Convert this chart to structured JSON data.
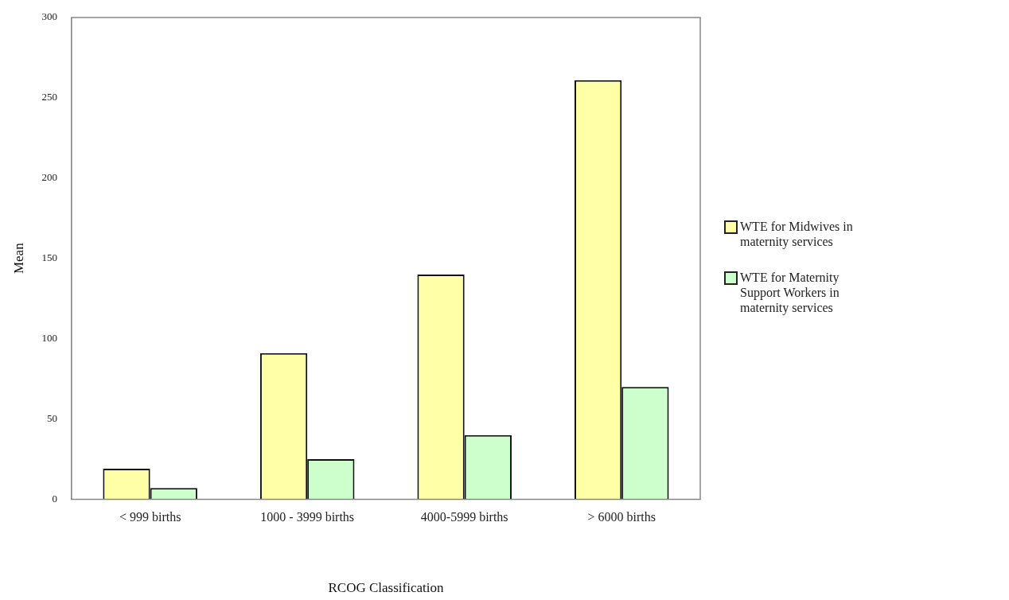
{
  "chart_data": {
    "type": "bar",
    "xlabel": "RCOG Classification",
    "ylabel": "Mean",
    "categories": [
      "< 999 births",
      "1000 - 3999 births",
      "4000-5999 births",
      "> 6000 births"
    ],
    "series": [
      {
        "name": "WTE for Midwives in maternity services",
        "color": "#ffffa8",
        "values": [
          19,
          91,
          140,
          261
        ]
      },
      {
        "name": "WTE for Maternity Support Workers in maternity services",
        "color": "#ccffcc",
        "values": [
          7,
          25,
          40,
          70
        ]
      }
    ],
    "ylim": [
      0,
      300
    ],
    "yticks": [
      0,
      50,
      100,
      150,
      200,
      250,
      300
    ],
    "grid": false,
    "legend": "right"
  }
}
